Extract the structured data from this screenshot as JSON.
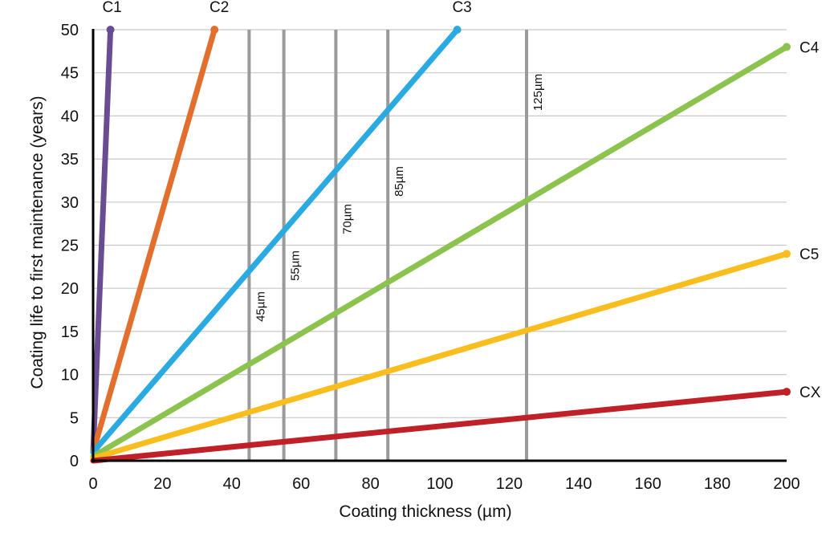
{
  "chart_data": {
    "type": "line",
    "title": "",
    "xlabel": "Coating thickness (µm)",
    "ylabel": "Coating life to first maintenance (years)",
    "xlim": [
      0,
      200
    ],
    "ylim": [
      0,
      50
    ],
    "x_ticks": [
      0,
      20,
      40,
      60,
      80,
      100,
      120,
      140,
      160,
      180,
      200
    ],
    "y_ticks": [
      0,
      5,
      10,
      15,
      20,
      25,
      30,
      35,
      40,
      45,
      50
    ],
    "grid": "horizontal",
    "series": [
      {
        "name": "C1",
        "color": "#6a4c93",
        "x": [
          0,
          5
        ],
        "y": [
          1,
          50
        ]
      },
      {
        "name": "C2",
        "color": "#e26f2d",
        "x": [
          0,
          35
        ],
        "y": [
          1,
          50
        ]
      },
      {
        "name": "C3",
        "color": "#2baae2",
        "x": [
          0,
          105
        ],
        "y": [
          1,
          50
        ]
      },
      {
        "name": "C4",
        "color": "#8cc34e",
        "x": [
          0,
          200
        ],
        "y": [
          0.5,
          48
        ]
      },
      {
        "name": "C5",
        "color": "#f9be1e",
        "x": [
          0,
          200
        ],
        "y": [
          0.3,
          24
        ]
      },
      {
        "name": "CX",
        "color": "#c02128",
        "x": [
          0,
          200
        ],
        "y": [
          0,
          8
        ]
      }
    ],
    "reference_lines": [
      {
        "x": 45,
        "label": "45µm"
      },
      {
        "x": 55,
        "label": "55µm"
      },
      {
        "x": 70,
        "label": "70µm"
      },
      {
        "x": 85,
        "label": "85µm"
      },
      {
        "x": 125,
        "label": "125µm"
      }
    ]
  }
}
